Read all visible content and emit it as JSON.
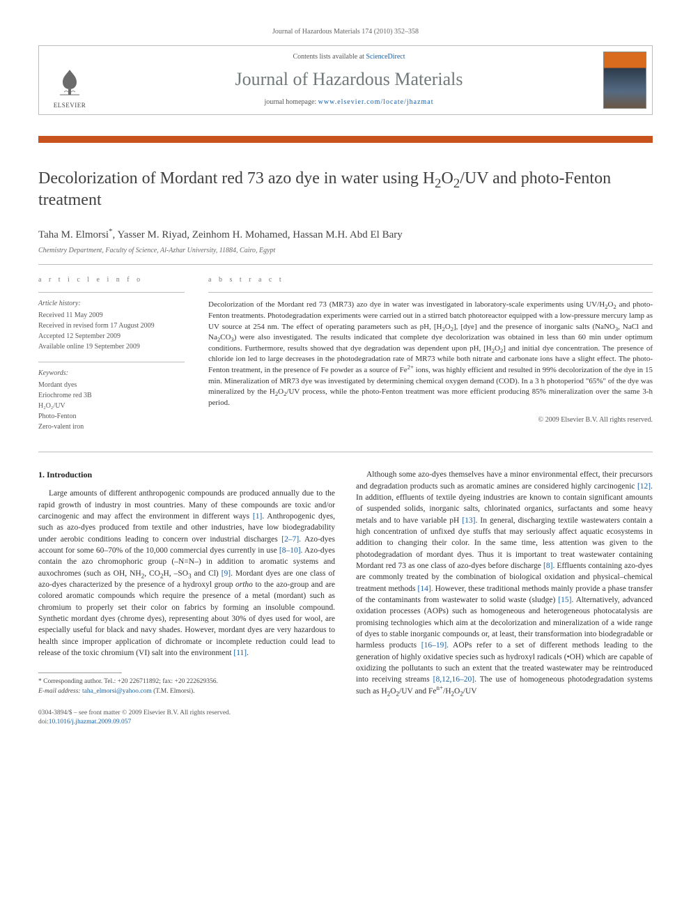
{
  "running_header": "Journal of Hazardous Materials 174 (2010) 352–358",
  "masthead": {
    "publisher": "ELSEVIER",
    "contents_prefix": "Contents lists available at ",
    "contents_link": "ScienceDirect",
    "journal_title": "Journal of Hazardous Materials",
    "homepage_prefix": "journal homepage: ",
    "homepage_url": "www.elsevier.com/locate/jhazmat",
    "cover_label": "Journal of Hazardous Materials"
  },
  "accent_color": "#c8531e",
  "title_html": "Decolorization of Mordant red 73 azo dye in water using H<sub>2</sub>O<sub>2</sub>/UV and photo-Fenton treatment",
  "authors_html": "Taha M. Elmorsi<span class=\"corr\">*</span>, Yasser M. Riyad, Zeinhom H. Mohamed, Hassan M.H. Abd El Bary",
  "affiliation": "Chemistry Department, Faculty of Science, Al-Azhar University, 11884, Cairo, Egypt",
  "info": {
    "heading": "a r t i c l e   i n f o",
    "history_label": "Article history:",
    "history": [
      "Received 11 May 2009",
      "Received in revised form 17 August 2009",
      "Accepted 12 September 2009",
      "Available online 19 September 2009"
    ],
    "keywords_label": "Keywords:",
    "keywords": [
      "Mordant dyes",
      "Eriochrome red 3B",
      "H₂O₂/UV",
      "Photo-Fenton",
      "Zero-valent iron"
    ]
  },
  "abstract": {
    "heading": "a b s t r a c t",
    "text_html": "Decolorization of the Mordant red 73 (MR73) azo dye in water was investigated in laboratory-scale experiments using UV/H<sub>2</sub>O<sub>2</sub> and photo-Fenton treatments. Photodegradation experiments were carried out in a stirred batch photoreactor equipped with a low-pressure mercury lamp as UV source at 254 nm. The effect of operating parameters such as pH, [H<sub>2</sub>O<sub>2</sub>], [dye] and the presence of inorganic salts (NaNO<sub>3</sub>, NaCl and Na<sub>2</sub>CO<sub>3</sub>) were also investigated. The results indicated that complete dye decolorization was obtained in less than 60 min under optimum conditions. Furthermore, results showed that dye degradation was dependent upon pH, [H<sub>2</sub>O<sub>2</sub>] and initial dye concentration. The presence of chloride ion led to large decreases in the photodegradation rate of MR73 while both nitrate and carbonate ions have a slight effect. The photo-Fenton treatment, in the presence of Fe powder as a source of Fe<sup>2+</sup> ions, was highly efficient and resulted in 99% decolorization of the dye in 15 min. Mineralization of MR73 dye was investigated by determining chemical oxygen demand (COD). In a 3 h photoperiod \"65%\" of the dye was mineralized by the H<sub>2</sub>O<sub>2</sub>/UV process, while the photo-Fenton treatment was more efficient producing 85% mineralization over the same 3-h period.",
    "copyright": "© 2009 Elsevier B.V. All rights reserved."
  },
  "section1": {
    "heading": "1. Introduction",
    "para1_html": "Large amounts of different anthropogenic compounds are produced annually due to the rapid growth of industry in most countries. Many of these compounds are toxic and/or carcinogenic and may affect the environment in different ways <span class=\"ref-link\">[1]</span>. Anthropogenic dyes, such as azo-dyes produced from textile and other industries, have low biodegradability under aerobic conditions leading to concern over industrial discharges <span class=\"ref-link\">[2–7]</span>. Azo-dyes account for some 60–70% of the 10,000 commercial dyes currently in use <span class=\"ref-link\">[8–10]</span>. Azo-dyes contain the azo chromophoric group (–N=N–) in addition to aromatic systems and auxochromes (such as OH, NH<sub>2</sub>, CO<sub>2</sub>H, –SO<sub>3</sub> and Cl) <span class=\"ref-link\">[9]</span>. Mordant dyes are one class of azo-dyes characterized by the presence of a hydroxyl group <i>ortho</i> to the azo-group and are colored aromatic compounds which require the presence of a metal (mordant) such as chromium to properly set their color on fabrics by forming an insoluble compound. Synthetic mordant dyes (chrome dyes), representing about 30% of dyes used for wool, are especially useful for black and navy shades. However, mordant dyes are very hazardous to health since improper application of dichromate or incomplete reduction could lead to release of the toxic chromium (VI) salt into the environment <span class=\"ref-link\">[11]</span>.",
    "para2_html": "Although some azo-dyes themselves have a minor environmental effect, their precursors and degradation products such as aromatic amines are considered highly carcinogenic <span class=\"ref-link\">[12]</span>. In addition, effluents of textile dyeing industries are known to contain significant amounts of suspended solids, inorganic salts, chlorinated organics, surfactants and some heavy metals and to have variable pH <span class=\"ref-link\">[13]</span>. In general, discharging textile wastewaters contain a high concentration of unfixed dye stuffs that may seriously affect aquatic ecosystems in addition to changing their color. In the same time, less attention was given to the photodegradation of mordant dyes. Thus it is important to treat wastewater containing Mordant red 73 as one class of azo-dyes before discharge <span class=\"ref-link\">[8]</span>. Effluents containing azo-dyes are commonly treated by the combination of biological oxidation and physical–chemical treatment methods <span class=\"ref-link\">[14]</span>. However, these traditional methods mainly provide a phase transfer of the contaminants from wastewater to solid waste (sludge) <span class=\"ref-link\">[15]</span>. Alternatively, advanced oxidation processes (AOPs) such as homogeneous and heterogeneous photocatalysis are promising technologies which aim at the decolorization and mineralization of a wide range of dyes to stable inorganic compounds or, at least, their transformation into biodegradable or harmless products <span class=\"ref-link\">[16–19]</span>. AOPs refer to a set of different methods leading to the generation of highly oxidative species such as hydroxyl radicals (•OH) which are capable of oxidizing the pollutants to such an extent that the treated wastewater may be reintroduced into receiving streams <span class=\"ref-link\">[8,12,16–20]</span>. The use of homogeneous photodegradation systems such as H<sub>2</sub>O<sub>2</sub>/UV and Fe<sup>n+</sup>/H<sub>2</sub>O<sub>2</sub>/UV"
  },
  "footnotes": {
    "corr_html": "* Corresponding author. Tel.: +20 226711892; fax: +20 222629356.",
    "email_label": "E-mail address:",
    "email": "taha_elmorsi@yahoo.com",
    "email_who": "(T.M. Elmorsi)."
  },
  "footer": {
    "line1": "0304-3894/$ – see front matter © 2009 Elsevier B.V. All rights reserved.",
    "doi_label": "doi:",
    "doi": "10.1016/j.jhazmat.2009.09.057"
  }
}
